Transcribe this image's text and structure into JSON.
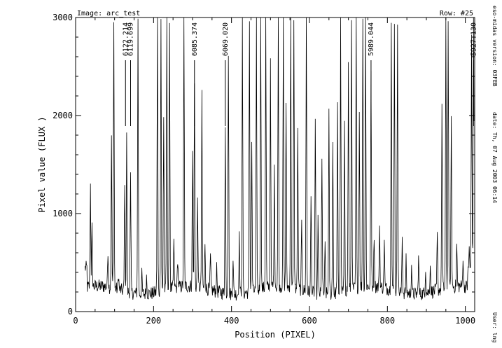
{
  "header": {
    "image_label": "Image: arc_test",
    "row_label": "Row: #25"
  },
  "side_info": {
    "version": "eso-midas version: 03FEB",
    "date": "date: Th, 07 Aug 2003 06:14",
    "user": "User: lng"
  },
  "chart_data": {
    "type": "line",
    "xlabel": "Position (PIXEL)",
    "ylabel": "Pixel value (FLUX )",
    "xlim": [
      0,
      1024
    ],
    "ylim": [
      0,
      3000
    ],
    "x_ticks": [
      0,
      200,
      400,
      600,
      800,
      1000
    ],
    "y_ticks": [
      0,
      1000,
      2000,
      3000
    ],
    "baseline": 220,
    "line_annotations": [
      {
        "x": 128,
        "label": "6122.214"
      },
      {
        "x": 141,
        "label": "6119.699"
      },
      {
        "x": 305,
        "label": "6085.374"
      },
      {
        "x": 384,
        "label": "6069.020"
      },
      {
        "x": 758,
        "label": "5989.044"
      },
      {
        "x": 1021,
        "label": "5927.130"
      }
    ],
    "peaks": [
      {
        "x": 38,
        "y": 1260
      },
      {
        "x": 42,
        "y": 820
      },
      {
        "x": 83,
        "y": 600
      },
      {
        "x": 92,
        "y": 1730
      },
      {
        "x": 98,
        "y": 3000
      },
      {
        "x": 110,
        "y": 380
      },
      {
        "x": 126,
        "y": 1360
      },
      {
        "x": 131,
        "y": 1800
      },
      {
        "x": 141,
        "y": 1400
      },
      {
        "x": 160,
        "y": 3000
      },
      {
        "x": 170,
        "y": 420
      },
      {
        "x": 182,
        "y": 400
      },
      {
        "x": 210,
        "y": 3000
      },
      {
        "x": 219,
        "y": 3000
      },
      {
        "x": 226,
        "y": 2000
      },
      {
        "x": 234,
        "y": 3000
      },
      {
        "x": 241,
        "y": 3000
      },
      {
        "x": 252,
        "y": 700
      },
      {
        "x": 262,
        "y": 520
      },
      {
        "x": 278,
        "y": 3000
      },
      {
        "x": 300,
        "y": 1600
      },
      {
        "x": 305,
        "y": 2300
      },
      {
        "x": 313,
        "y": 1140
      },
      {
        "x": 324,
        "y": 2170
      },
      {
        "x": 332,
        "y": 700
      },
      {
        "x": 346,
        "y": 560
      },
      {
        "x": 362,
        "y": 450
      },
      {
        "x": 384,
        "y": 1900
      },
      {
        "x": 392,
        "y": 2700
      },
      {
        "x": 404,
        "y": 600
      },
      {
        "x": 420,
        "y": 800
      },
      {
        "x": 428,
        "y": 3000
      },
      {
        "x": 446,
        "y": 3000
      },
      {
        "x": 452,
        "y": 1700
      },
      {
        "x": 464,
        "y": 2950
      },
      {
        "x": 475,
        "y": 3000
      },
      {
        "x": 488,
        "y": 3000
      },
      {
        "x": 500,
        "y": 2560
      },
      {
        "x": 510,
        "y": 1400
      },
      {
        "x": 520,
        "y": 3000
      },
      {
        "x": 533,
        "y": 3000
      },
      {
        "x": 540,
        "y": 2120
      },
      {
        "x": 552,
        "y": 3000
      },
      {
        "x": 560,
        "y": 3000
      },
      {
        "x": 570,
        "y": 1900
      },
      {
        "x": 580,
        "y": 900
      },
      {
        "x": 592,
        "y": 3000
      },
      {
        "x": 604,
        "y": 1200
      },
      {
        "x": 615,
        "y": 2000
      },
      {
        "x": 622,
        "y": 1000
      },
      {
        "x": 632,
        "y": 1640
      },
      {
        "x": 640,
        "y": 700
      },
      {
        "x": 650,
        "y": 2050
      },
      {
        "x": 660,
        "y": 1820
      },
      {
        "x": 672,
        "y": 2100
      },
      {
        "x": 680,
        "y": 3000
      },
      {
        "x": 690,
        "y": 1900
      },
      {
        "x": 700,
        "y": 2520
      },
      {
        "x": 708,
        "y": 3000
      },
      {
        "x": 720,
        "y": 3000
      },
      {
        "x": 728,
        "y": 2000
      },
      {
        "x": 737,
        "y": 3000
      },
      {
        "x": 744,
        "y": 3000
      },
      {
        "x": 758,
        "y": 2400
      },
      {
        "x": 766,
        "y": 750
      },
      {
        "x": 780,
        "y": 850
      },
      {
        "x": 792,
        "y": 700
      },
      {
        "x": 810,
        "y": 3000
      },
      {
        "x": 818,
        "y": 3000
      },
      {
        "x": 826,
        "y": 3000
      },
      {
        "x": 838,
        "y": 780
      },
      {
        "x": 848,
        "y": 560
      },
      {
        "x": 862,
        "y": 520
      },
      {
        "x": 880,
        "y": 600
      },
      {
        "x": 898,
        "y": 480
      },
      {
        "x": 910,
        "y": 520
      },
      {
        "x": 928,
        "y": 780
      },
      {
        "x": 940,
        "y": 2100
      },
      {
        "x": 950,
        "y": 3000
      },
      {
        "x": 956,
        "y": 3000
      },
      {
        "x": 964,
        "y": 1900
      },
      {
        "x": 978,
        "y": 650
      },
      {
        "x": 994,
        "y": 520
      },
      {
        "x": 1010,
        "y": 480
      },
      {
        "x": 1016,
        "y": 2650
      },
      {
        "x": 1021,
        "y": 3000
      }
    ]
  }
}
